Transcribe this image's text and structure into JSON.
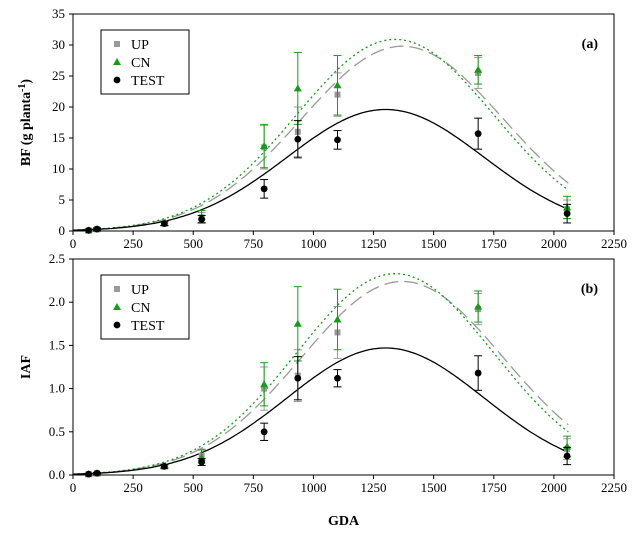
{
  "chart_data": [
    {
      "type": "scatter",
      "panel_tag": "(a)",
      "ylabel_main": "BF (g planta",
      "ylabel_sup": "-1",
      "ylabel_end": ")",
      "xlim": [
        0,
        2250
      ],
      "ylim": [
        0,
        35
      ],
      "xticks": [
        "0",
        "250",
        "500",
        "750",
        "1000",
        "1250",
        "1500",
        "1750",
        "2000",
        "2250"
      ],
      "yticks": [
        "0",
        "5",
        "10",
        "15",
        "20",
        "25",
        "30",
        "35"
      ],
      "legend_position": "top-left",
      "series": [
        {
          "name": "UP",
          "marker": "square",
          "color": "#9a9a9a",
          "line_style": "long-dash",
          "x": [
            65,
            100,
            380,
            535,
            795,
            935,
            1100,
            1685,
            2055
          ],
          "y": [
            0.1,
            0.3,
            1.2,
            2.2,
            13.5,
            16.0,
            22.0,
            25.5,
            3.5
          ],
          "err": [
            0.2,
            0.2,
            0.3,
            0.8,
            3.5,
            4.0,
            3.5,
            2.5,
            1.5
          ],
          "curve_peak_x": 1370,
          "curve_peak_y": 29.8,
          "curve_width": 420
        },
        {
          "name": "CN",
          "marker": "triangle",
          "color": "#1a9a1a",
          "line_style": "dotted",
          "x": [
            65,
            100,
            380,
            535,
            795,
            935,
            1100,
            1685,
            2055
          ],
          "y": [
            0.1,
            0.3,
            1.2,
            2.3,
            13.7,
            23.0,
            23.5,
            26.0,
            3.8
          ],
          "err": [
            0.2,
            0.2,
            0.3,
            1.0,
            3.5,
            5.8,
            4.8,
            2.3,
            1.8
          ],
          "curve_peak_x": 1340,
          "curve_peak_y": 30.9,
          "curve_width": 410
        },
        {
          "name": "TEST",
          "marker": "circle",
          "color": "#000000",
          "line_style": "solid",
          "x": [
            65,
            100,
            380,
            535,
            795,
            935,
            1100,
            1685,
            2055
          ],
          "y": [
            0.1,
            0.3,
            1.2,
            1.9,
            6.8,
            14.8,
            14.7,
            15.7,
            2.8
          ],
          "err": [
            0.2,
            0.2,
            0.3,
            0.6,
            1.5,
            3.0,
            1.5,
            2.5,
            1.5
          ],
          "curve_peak_x": 1300,
          "curve_peak_y": 19.6,
          "curve_width": 410
        }
      ]
    },
    {
      "type": "scatter",
      "panel_tag": "(b)",
      "ylabel_main": "IAF",
      "ylabel_sup": "",
      "ylabel_end": "",
      "xlabel": "GDA",
      "xlim": [
        0,
        2250
      ],
      "ylim": [
        0,
        2.5
      ],
      "xticks": [
        "0",
        "250",
        "500",
        "750",
        "1000",
        "1250",
        "1500",
        "1750",
        "2000",
        "2250"
      ],
      "yticks": [
        "0.0",
        "0.5",
        "1.0",
        "1.5",
        "2.0",
        "2.5"
      ],
      "legend_position": "top-left",
      "series": [
        {
          "name": "UP",
          "marker": "square",
          "color": "#9a9a9a",
          "line_style": "long-dash",
          "x": [
            65,
            100,
            380,
            535,
            795,
            935,
            1100,
            1685,
            2055
          ],
          "y": [
            0.01,
            0.02,
            0.1,
            0.22,
            1.0,
            1.15,
            1.65,
            1.92,
            0.3
          ],
          "err": [
            0.01,
            0.01,
            0.02,
            0.08,
            0.25,
            0.3,
            0.3,
            0.18,
            0.12
          ],
          "curve_peak_x": 1370,
          "curve_peak_y": 2.24,
          "curve_width": 420
        },
        {
          "name": "CN",
          "marker": "triangle",
          "color": "#1a9a1a",
          "line_style": "dotted",
          "x": [
            65,
            100,
            380,
            535,
            795,
            935,
            1100,
            1685,
            2055
          ],
          "y": [
            0.01,
            0.02,
            0.1,
            0.2,
            1.05,
            1.75,
            1.8,
            1.95,
            0.33
          ],
          "err": [
            0.01,
            0.01,
            0.02,
            0.09,
            0.25,
            0.43,
            0.35,
            0.18,
            0.12
          ],
          "curve_peak_x": 1340,
          "curve_peak_y": 2.33,
          "curve_width": 410
        },
        {
          "name": "TEST",
          "marker": "circle",
          "color": "#000000",
          "line_style": "solid",
          "x": [
            65,
            100,
            380,
            535,
            795,
            935,
            1100,
            1685,
            2055
          ],
          "y": [
            0.01,
            0.02,
            0.1,
            0.15,
            0.5,
            1.12,
            1.12,
            1.18,
            0.22
          ],
          "err": [
            0.01,
            0.01,
            0.02,
            0.04,
            0.1,
            0.25,
            0.1,
            0.2,
            0.1
          ],
          "curve_peak_x": 1300,
          "curve_peak_y": 1.47,
          "curve_width": 410
        }
      ]
    }
  ]
}
